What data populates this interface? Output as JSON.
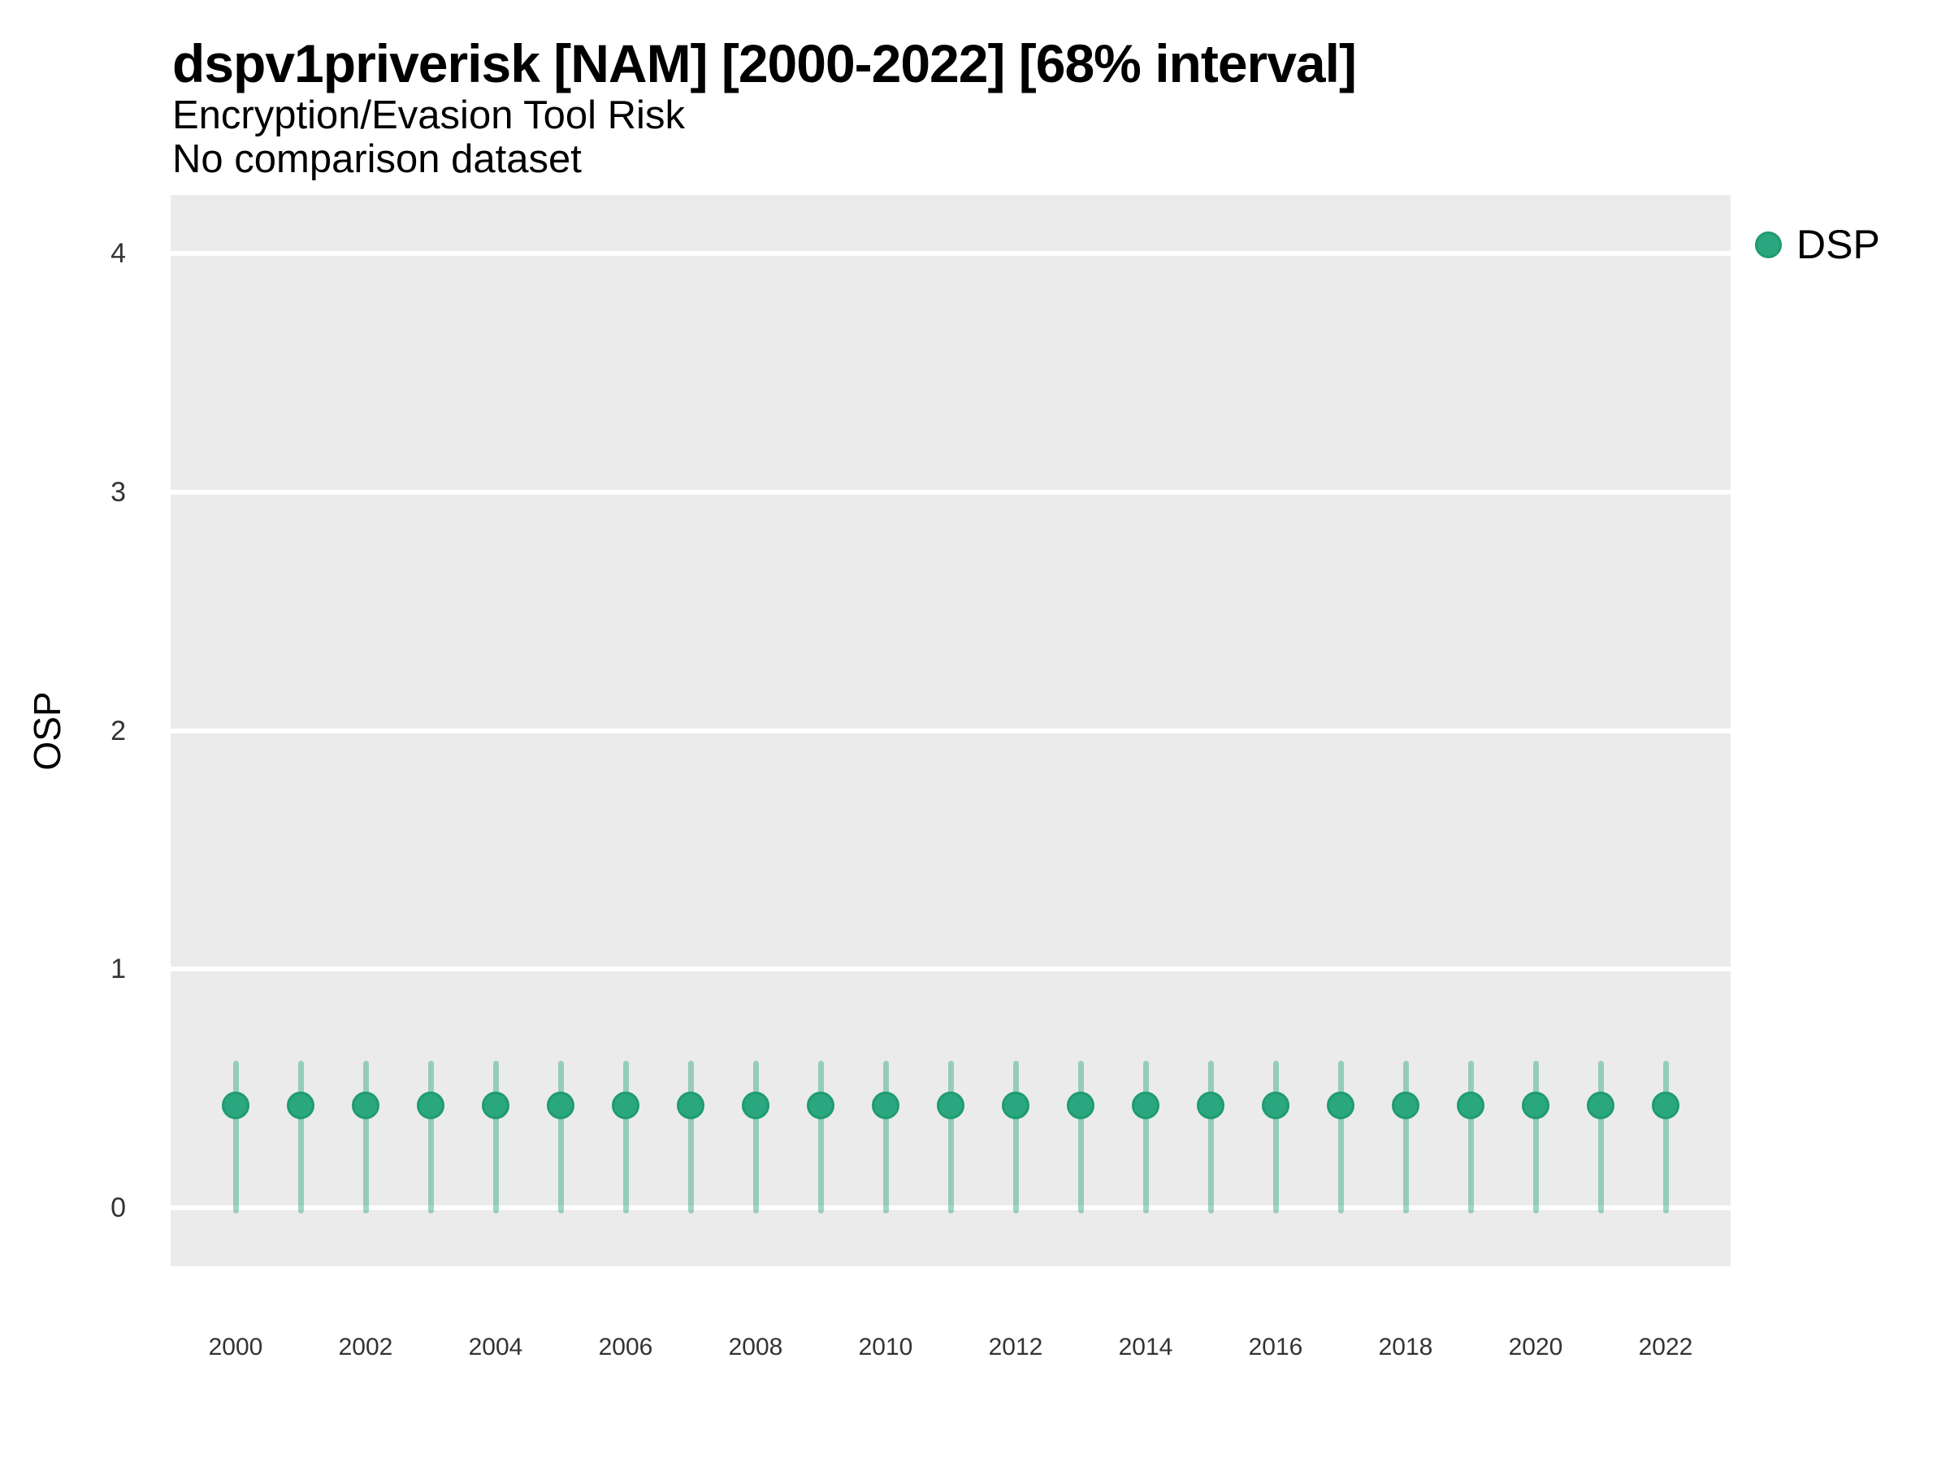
{
  "header": {
    "title": "dspv1priverisk [NAM] [2000-2022] [68% interval]",
    "subtitle": "Encryption/Evasion Tool Risk",
    "note": "No comparison dataset"
  },
  "legend": {
    "position": "right-top",
    "items": [
      {
        "label": "DSP",
        "marker": "circle",
        "color": "#2aa77e"
      }
    ]
  },
  "axes": {
    "y_label": "OSP",
    "x_label": ""
  },
  "colors": {
    "panel_background": "#ebebeb",
    "gridline": "#ffffff",
    "point_fill": "#2aa77e",
    "point_stroke": "#1f9b71",
    "interval_bar": "rgba(43,167,125,0.45)",
    "tick_text": "#333333",
    "title_text": "#000000"
  },
  "chart_data": {
    "type": "scatter",
    "title": "dspv1priverisk [NAM] [2000-2022] [68% interval]",
    "subtitle": "Encryption/Evasion Tool Risk",
    "note": "No comparison dataset",
    "region": "NAM",
    "interval_level": "68%",
    "xlabel": "",
    "ylabel": "OSP",
    "grid": "horizontal-major-only",
    "legend_position": "right-top",
    "xlim": [
      1999,
      2023
    ],
    "ylim": [
      -0.245,
      4.245
    ],
    "yticks": [
      0,
      1,
      2,
      3,
      4
    ],
    "xticks": [
      2000,
      2002,
      2004,
      2006,
      2008,
      2010,
      2012,
      2014,
      2016,
      2018,
      2020,
      2022
    ],
    "series": [
      {
        "name": "DSP",
        "color": "#2aa77e",
        "x": [
          2000,
          2001,
          2002,
          2003,
          2004,
          2005,
          2006,
          2007,
          2008,
          2009,
          2010,
          2011,
          2012,
          2013,
          2014,
          2015,
          2016,
          2017,
          2018,
          2019,
          2020,
          2021,
          2022
        ],
        "y": [
          0.43,
          0.43,
          0.43,
          0.43,
          0.43,
          0.43,
          0.43,
          0.43,
          0.43,
          0.43,
          0.43,
          0.43,
          0.43,
          0.43,
          0.43,
          0.43,
          0.43,
          0.43,
          0.43,
          0.43,
          0.43,
          0.43,
          0.43
        ],
        "y_low": [
          0.0,
          0.0,
          0.0,
          0.0,
          0.0,
          0.0,
          0.0,
          0.0,
          0.0,
          0.0,
          0.0,
          0.0,
          0.0,
          0.0,
          0.0,
          0.0,
          0.0,
          0.0,
          0.0,
          0.0,
          0.0,
          0.0,
          0.0
        ],
        "y_high": [
          0.61,
          0.61,
          0.61,
          0.61,
          0.61,
          0.61,
          0.61,
          0.61,
          0.61,
          0.61,
          0.61,
          0.61,
          0.61,
          0.61,
          0.61,
          0.61,
          0.61,
          0.61,
          0.61,
          0.61,
          0.61,
          0.61,
          0.61
        ]
      }
    ]
  }
}
